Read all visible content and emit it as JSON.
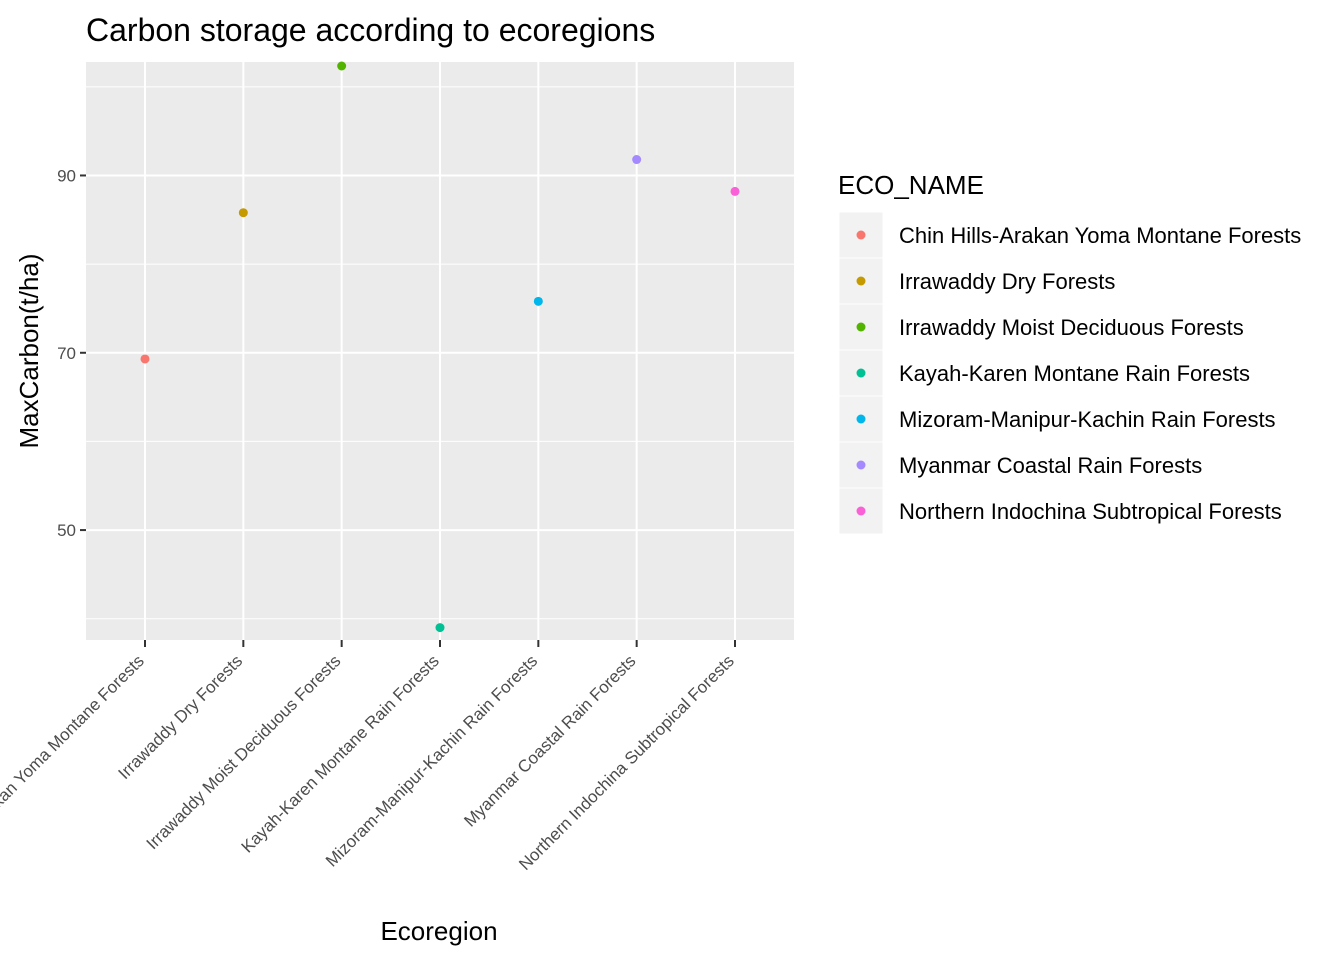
{
  "chart_data": {
    "type": "scatter",
    "title": "Carbon storage according to ecoregions",
    "xlabel": "Ecoregion",
    "ylabel": "MaxCarbon(t/ha)",
    "ylim": [
      37.6,
      102.8
    ],
    "yticks": [
      50,
      70,
      90
    ],
    "grid": true,
    "categories": [
      "Chin Hills-Arakan Yoma Montane Forests",
      "Irrawaddy Dry Forests",
      "Irrawaddy Moist Deciduous Forests",
      "Kayah-Karen Montane Rain Forests",
      "Mizoram-Manipur-Kachin Rain Forests",
      "Myanmar Coastal Rain Forests",
      "Northern Indochina Subtropical Forests"
    ],
    "values": [
      69.3,
      85.8,
      104.5,
      39.0,
      75.8,
      91.8,
      88.2
    ],
    "colors": [
      "#F8766D",
      "#C49A00",
      "#53B400",
      "#00C094",
      "#00B6EB",
      "#A58AFF",
      "#FB61D7"
    ],
    "legend": {
      "title": "ECO_NAME",
      "placement": "right",
      "entries": [
        "Chin Hills-Arakan Yoma Montane Forests",
        "Irrawaddy Dry Forests",
        "Irrawaddy Moist Deciduous Forests",
        "Kayah-Karen Montane Rain Forests",
        "Mizoram-Manipur-Kachin Rain Forests",
        "Myanmar Coastal Rain Forests",
        "Northern Indochina Subtropical Forests"
      ]
    }
  }
}
